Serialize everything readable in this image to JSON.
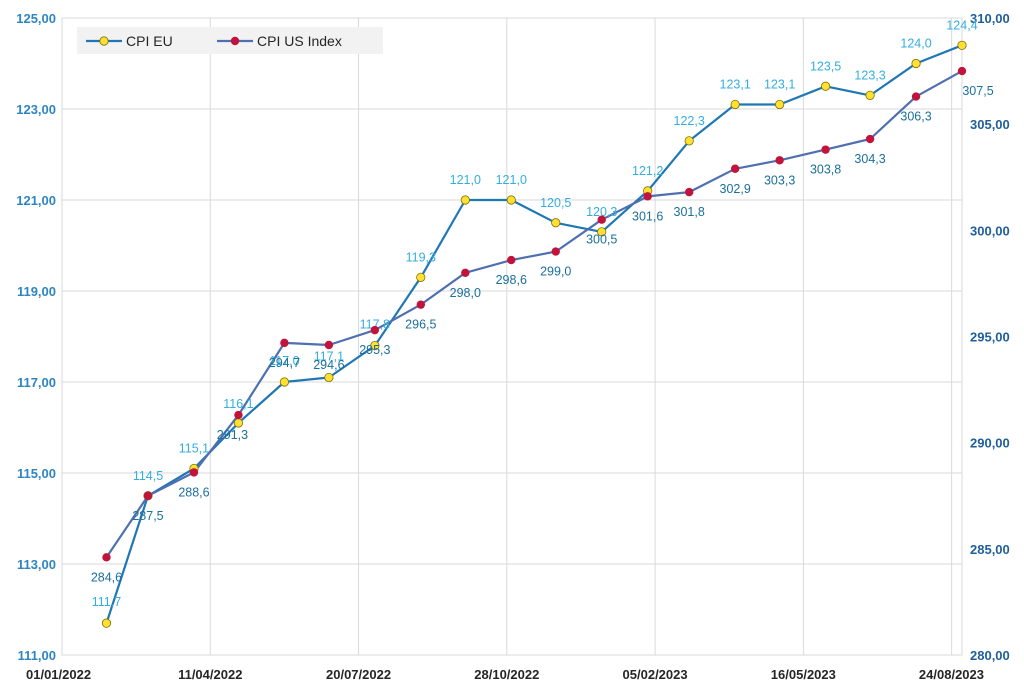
{
  "chart_data": {
    "type": "line",
    "x": [
      "01/01/2022",
      "11/04/2022",
      "20/07/2022",
      "28/10/2022",
      "05/02/2023",
      "16/05/2023",
      "24/08/2023"
    ],
    "x_tick_labels": [
      "01/01/2022",
      "11/04/2022",
      "20/07/2022",
      "28/10/2022",
      "05/02/2023",
      "16/05/2023",
      "24/08/2023"
    ],
    "x_range": [
      "2022-01-01",
      "2023-08-31"
    ],
    "y_left": {
      "range": [
        111,
        125
      ],
      "ticks": [
        "111,00",
        "113,00",
        "115,00",
        "117,00",
        "119,00",
        "121,00",
        "123,00",
        "125,00"
      ],
      "color": "#2e86c1"
    },
    "y_right": {
      "range": [
        280,
        310
      ],
      "ticks": [
        "280,00",
        "285,00",
        "290,00",
        "295,00",
        "300,00",
        "305,00",
        "310,00"
      ],
      "color": "#1f5f99"
    },
    "grid": true,
    "legend_position": "top-left",
    "series": [
      {
        "name": "CPI EU",
        "axis": "left",
        "line_color": "#1f77b4",
        "marker_color": "#ffe033",
        "label_color": "#33aee0",
        "points": [
          {
            "x": "2022-01-31",
            "y": 111.7,
            "label": "111,7"
          },
          {
            "x": "2022-02-28",
            "y": 114.5,
            "label": "114,5"
          },
          {
            "x": "2022-03-31",
            "y": 115.1,
            "label": "115,1"
          },
          {
            "x": "2022-04-30",
            "y": 116.1,
            "label": "116,1"
          },
          {
            "x": "2022-05-31",
            "y": 117.0,
            "label": "117,0"
          },
          {
            "x": "2022-06-30",
            "y": 117.1,
            "label": "117,1"
          },
          {
            "x": "2022-07-31",
            "y": 117.8,
            "label": "117,8"
          },
          {
            "x": "2022-08-31",
            "y": 119.3,
            "label": "119,3"
          },
          {
            "x": "2022-09-30",
            "y": 121.0,
            "label": "121,0"
          },
          {
            "x": "2022-10-31",
            "y": 121.0,
            "label": "121,0"
          },
          {
            "x": "2022-11-30",
            "y": 120.5,
            "label": "120,5"
          },
          {
            "x": "2022-12-31",
            "y": 120.3,
            "label": "120,3"
          },
          {
            "x": "2023-01-31",
            "y": 121.2,
            "label": "121,2"
          },
          {
            "x": "2023-02-28",
            "y": 122.3,
            "label": "122,3"
          },
          {
            "x": "2023-03-31",
            "y": 123.1,
            "label": "123,1"
          },
          {
            "x": "2023-04-30",
            "y": 123.1,
            "label": "123,1"
          },
          {
            "x": "2023-05-31",
            "y": 123.5,
            "label": "123,5"
          },
          {
            "x": "2023-06-30",
            "y": 123.3,
            "label": "123,3"
          },
          {
            "x": "2023-07-31",
            "y": 124.0,
            "label": "124,0"
          },
          {
            "x": "2023-08-31",
            "y": 124.4,
            "label": "124,4"
          }
        ]
      },
      {
        "name": "CPI US Index",
        "axis": "right",
        "line_color": "#4f6fb0",
        "marker_color": "#c0143c",
        "label_color": "#1b6f9b",
        "points": [
          {
            "x": "2022-01-31",
            "y": 284.6,
            "label": "284,6"
          },
          {
            "x": "2022-02-28",
            "y": 287.5,
            "label": "287,5"
          },
          {
            "x": "2022-03-31",
            "y": 288.6,
            "label": "288,6"
          },
          {
            "x": "2022-04-30",
            "y": 291.3,
            "label": "291,3"
          },
          {
            "x": "2022-05-31",
            "y": 294.7,
            "label": "294,7"
          },
          {
            "x": "2022-06-30",
            "y": 294.6,
            "label": "294,6"
          },
          {
            "x": "2022-07-31",
            "y": 295.3,
            "label": "295,3"
          },
          {
            "x": "2022-08-31",
            "y": 296.5,
            "label": "296,5"
          },
          {
            "x": "2022-09-30",
            "y": 298.0,
            "label": "298,0"
          },
          {
            "x": "2022-10-31",
            "y": 298.6,
            "label": "298,6"
          },
          {
            "x": "2022-11-30",
            "y": 299.0,
            "label": "299,0"
          },
          {
            "x": "2022-12-31",
            "y": 300.5,
            "label": "300,5"
          },
          {
            "x": "2023-01-31",
            "y": 301.6,
            "label": "301,6"
          },
          {
            "x": "2023-02-28",
            "y": 301.8,
            "label": "301,8"
          },
          {
            "x": "2023-03-31",
            "y": 302.9,
            "label": "302,9"
          },
          {
            "x": "2023-04-30",
            "y": 303.3,
            "label": "303,3"
          },
          {
            "x": "2023-05-31",
            "y": 303.8,
            "label": "303,8"
          },
          {
            "x": "2023-06-30",
            "y": 304.3,
            "label": "304,3"
          },
          {
            "x": "2023-07-31",
            "y": 306.3,
            "label": "306,3"
          },
          {
            "x": "2023-08-31",
            "y": 307.5,
            "label": "307,5"
          }
        ]
      }
    ]
  }
}
